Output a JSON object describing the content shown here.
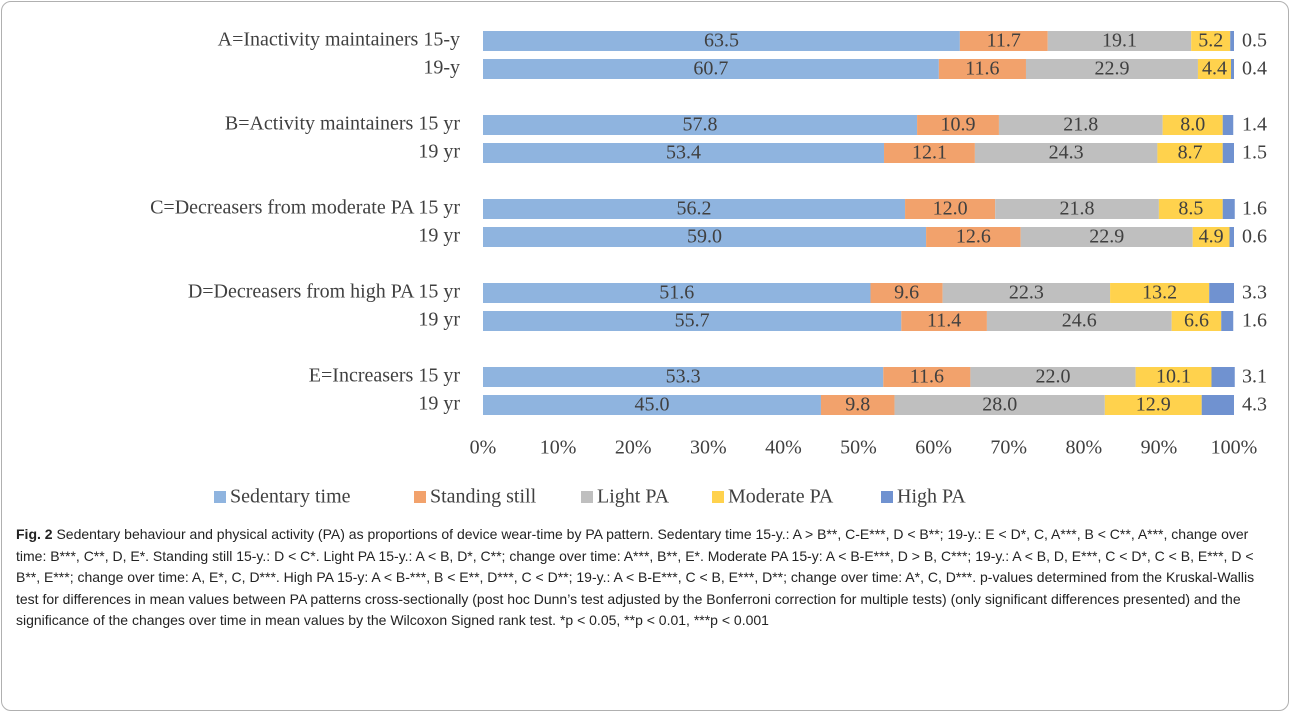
{
  "chart_data": {
    "type": "stacked-bar-horizontal",
    "categories": [
      "A=Inactivity maintainers 15-y",
      "19-y",
      "B=Activity maintainers 15 yr",
      "19 yr",
      "C=Decreasers from moderate PA 15 yr",
      "19 yr",
      "D=Decreasers from high PA 15 yr",
      "19 yr",
      "E=Increasers 15 yr",
      "19 yr"
    ],
    "series": [
      {
        "name": "Sedentary time",
        "color": "#8fb4df",
        "values": [
          63.5,
          60.7,
          57.8,
          53.4,
          56.2,
          59.0,
          51.6,
          55.7,
          53.3,
          45.0
        ],
        "value_labels": [
          "63.5",
          "60.7",
          "57.8",
          "53.4",
          "56.2",
          "59.0",
          "51.6",
          "55.7",
          "53.3",
          "45.0"
        ]
      },
      {
        "name": "Standing still",
        "color": "#f2a26c",
        "values": [
          11.7,
          11.6,
          10.9,
          12.1,
          12.0,
          12.6,
          9.6,
          11.4,
          11.6,
          9.8
        ],
        "value_labels": [
          "11.7",
          "11.6",
          "10.9",
          "12.1",
          "12.0",
          "12.6",
          "9.6",
          "11.4",
          "11.6",
          "9.8"
        ]
      },
      {
        "name": "Light PA",
        "color": "#bfbfbf",
        "values": [
          19.1,
          22.9,
          21.8,
          24.3,
          21.8,
          22.9,
          22.3,
          24.6,
          22.0,
          28.0
        ],
        "value_labels": [
          "19.1",
          "22.9",
          "21.8",
          "24.3",
          "21.8",
          "22.9",
          "22.3",
          "24.6",
          "22.0",
          "28.0"
        ]
      },
      {
        "name": "Moderate PA",
        "color": "#ffd24d",
        "values": [
          5.2,
          4.4,
          8.0,
          8.7,
          8.5,
          4.9,
          13.2,
          6.6,
          10.1,
          12.9
        ],
        "value_labels": [
          "5.2",
          "4.4",
          "8.0",
          "8.7",
          "8.5",
          "4.9",
          "13.2",
          "6.6",
          "10.1",
          "12.9"
        ]
      },
      {
        "name": "High PA",
        "color": "#7092d0",
        "values": [
          0.5,
          0.4,
          1.4,
          1.5,
          1.6,
          0.6,
          3.3,
          1.6,
          3.1,
          4.3
        ],
        "value_labels": [
          "0.5",
          "0.4",
          "1.4",
          "1.5",
          "1.6",
          "0.6",
          "3.3",
          "1.6",
          "3.1",
          "4.3"
        ]
      }
    ],
    "xlim": [
      0,
      100
    ],
    "xticks": [
      {
        "value": 0,
        "label": "0%"
      },
      {
        "value": 10,
        "label": "10%"
      },
      {
        "value": 20,
        "label": "20%"
      },
      {
        "value": 30,
        "label": "30%"
      },
      {
        "value": 40,
        "label": "40%"
      },
      {
        "value": 50,
        "label": "50%"
      },
      {
        "value": 60,
        "label": "60%"
      },
      {
        "value": 70,
        "label": "70%"
      },
      {
        "value": 80,
        "label": "80%"
      },
      {
        "value": 90,
        "label": "90%"
      },
      {
        "value": 100,
        "label": "100%"
      }
    ],
    "legend": "bottom"
  },
  "caption": {
    "label": "Fig. 2",
    "text": "Sedentary behaviour and physical activity (PA) as proportions of device wear-time by PA pattern. Sedentary time 15-y.: A > B**, C-E***, D < B**; 19-y.: E < D*, C, A***, B < C**, A***, change over time: B***, C**, D, E*. Standing still 15-y.: D < C*. Light PA 15-y.: A < B, D*, C**; change over time: A***, B**, E*. Moderate PA 15-y: A < B-E***, D > B, C***; 19-y.: A < B, D, E***, C < D*, C < B, E***, D < B**, E***; change over time: A, E*, C, D***. High PA 15-y: A < B-***, B < E**, D***, C < D**; 19-y.: A < B-E***, C < B, E***, D**; change over time: A*, C, D***. p-values determined from the Kruskal-Wallis test for differences in mean values between PA patterns cross-sectionally (post hoc Dunn’s test adjusted by the Bonferroni correction for multiple tests) (only significant differences presented) and the significance of the changes over time in mean values by the Wilcoxon Signed rank test. *p < 0.05, **p < 0.01, ***p < 0.001"
  }
}
